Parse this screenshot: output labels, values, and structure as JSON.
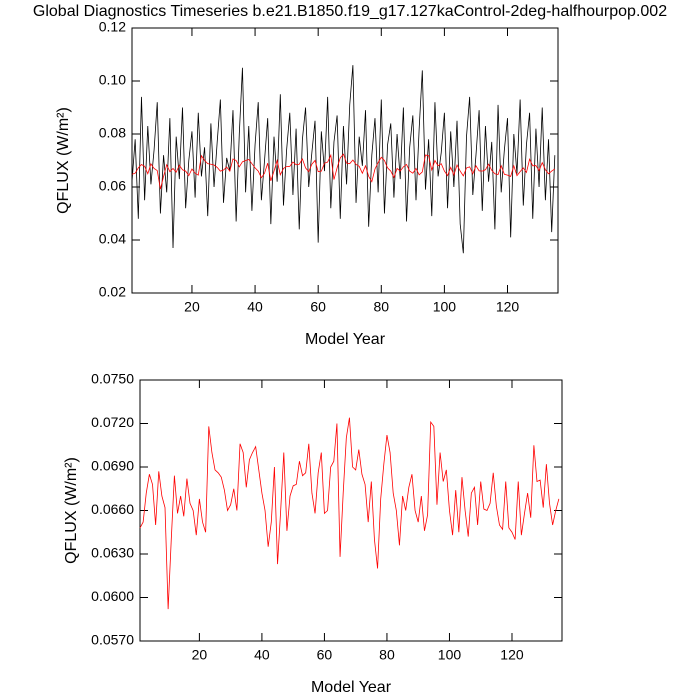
{
  "chart_data": [
    {
      "type": "line",
      "title": "Global Diagnostics Timeseries b.e21.B1850.f19_g17.127kaControl-2deg-halfhourpop.002",
      "xlabel": "Model Year",
      "ylabel": "QFLUX (W/m²)",
      "x": [
        1,
        2,
        3,
        4,
        5,
        6,
        7,
        8,
        9,
        10,
        11,
        12,
        13,
        14,
        15,
        16,
        17,
        18,
        19,
        20,
        21,
        22,
        23,
        24,
        25,
        26,
        27,
        28,
        29,
        30,
        31,
        32,
        33,
        34,
        35,
        36,
        37,
        38,
        39,
        40,
        41,
        42,
        43,
        44,
        45,
        46,
        47,
        48,
        49,
        50,
        51,
        52,
        53,
        54,
        55,
        56,
        57,
        58,
        59,
        60,
        61,
        62,
        63,
        64,
        65,
        66,
        67,
        68,
        69,
        70,
        71,
        72,
        73,
        74,
        75,
        76,
        77,
        78,
        79,
        80,
        81,
        82,
        83,
        84,
        85,
        86,
        87,
        88,
        89,
        90,
        91,
        92,
        93,
        94,
        95,
        96,
        97,
        98,
        99,
        100,
        101,
        102,
        103,
        104,
        105,
        106,
        107,
        108,
        109,
        110,
        111,
        112,
        113,
        114,
        115,
        116,
        117,
        118,
        119,
        120,
        121,
        122,
        123,
        124,
        125,
        126,
        127,
        128,
        129,
        130,
        131,
        132,
        133,
        134,
        135
      ],
      "xlim": [
        1,
        136
      ],
      "xticks": [
        20,
        40,
        60,
        80,
        100,
        120
      ],
      "ylim": [
        0.02,
        0.12
      ],
      "yticks": [
        0.02,
        0.04,
        0.06,
        0.08,
        {
          "value": 0.1,
          "label": "0.10"
        },
        0.12
      ],
      "series": [
        {
          "color": "#000000",
          "values": [
            0.062,
            0.078,
            0.048,
            0.094,
            0.055,
            0.083,
            0.061,
            0.074,
            0.092,
            0.05,
            0.072,
            0.058,
            0.086,
            0.037,
            0.079,
            0.063,
            0.09,
            0.052,
            0.07,
            0.081,
            0.056,
            0.088,
            0.064,
            0.075,
            0.049,
            0.084,
            0.06,
            0.077,
            0.093,
            0.054,
            0.071,
            0.066,
            0.089,
            0.047,
            0.08,
            0.105,
            0.058,
            0.083,
            0.051,
            0.076,
            0.092,
            0.055,
            0.07,
            0.086,
            0.046,
            0.079,
            0.062,
            0.095,
            0.053,
            0.074,
            0.088,
            0.057,
            0.082,
            0.044,
            0.078,
            0.09,
            0.06,
            0.073,
            0.085,
            0.039,
            0.081,
            0.066,
            0.094,
            0.052,
            0.077,
            0.087,
            0.048,
            0.083,
            0.061,
            0.091,
            0.106,
            0.054,
            0.079,
            0.068,
            0.089,
            0.045,
            0.072,
            0.086,
            0.058,
            0.093,
            0.05,
            0.076,
            0.084,
            0.056,
            0.08,
            0.063,
            0.09,
            0.047,
            0.075,
            0.087,
            0.055,
            0.082,
            0.104,
            0.059,
            0.078,
            0.049,
            0.092,
            0.064,
            0.073,
            0.088,
            0.052,
            0.081,
            0.06,
            0.085,
            0.046,
            0.035,
            0.079,
            0.094,
            0.057,
            0.072,
            0.089,
            0.051,
            0.083,
            0.062,
            0.077,
            0.044,
            0.091,
            0.058,
            0.074,
            0.086,
            0.041,
            0.08,
            0.065,
            0.093,
            0.053,
            0.076,
            0.088,
            0.048,
            0.082,
            0.06,
            0.09,
            0.055,
            0.078,
            0.043,
            0.072
          ]
        },
        {
          "color": "#ff0000",
          "values": [
            0.0648,
            0.0652,
            0.0672,
            0.0685,
            0.0678,
            0.065,
            0.0687,
            0.067,
            0.0662,
            0.0592,
            0.064,
            0.0684,
            0.0658,
            0.067,
            0.0656,
            0.0682,
            0.0665,
            0.066,
            0.0643,
            0.0668,
            0.0652,
            0.0645,
            0.0718,
            0.07,
            0.0688,
            0.0686,
            0.0683,
            0.0674,
            0.066,
            0.0664,
            0.0675,
            0.066,
            0.0706,
            0.07,
            0.0676,
            0.0695,
            0.07,
            0.0704,
            0.0688,
            0.0672,
            0.066,
            0.0635,
            0.0652,
            0.069,
            0.0623,
            0.066,
            0.07,
            0.0646,
            0.067,
            0.0677,
            0.0678,
            0.0694,
            0.0684,
            0.0686,
            0.0706,
            0.0672,
            0.0658,
            0.0686,
            0.07,
            0.0658,
            0.066,
            0.069,
            0.0694,
            0.072,
            0.0628,
            0.0672,
            0.071,
            0.0724,
            0.069,
            0.0688,
            0.0702,
            0.0685,
            0.0678,
            0.0652,
            0.068,
            0.064,
            0.062,
            0.0668,
            0.0692,
            0.0712,
            0.07,
            0.0672,
            0.066,
            0.0636,
            0.067,
            0.066,
            0.0676,
            0.0685,
            0.066,
            0.0652,
            0.067,
            0.0646,
            0.0657,
            0.0721,
            0.0718,
            0.0664,
            0.07,
            0.068,
            0.0688,
            0.066,
            0.0643,
            0.0674,
            0.0645,
            0.0683,
            0.066,
            0.0642,
            0.0672,
            0.0676,
            0.065,
            0.068,
            0.0661,
            0.066,
            0.0665,
            0.0686,
            0.0663,
            0.065,
            0.0647,
            0.068,
            0.0648,
            0.0645,
            0.064,
            0.068,
            0.0643,
            0.0658,
            0.0672,
            0.0655,
            0.0705,
            0.068,
            0.0681,
            0.0662,
            0.0692,
            0.0665,
            0.065,
            0.066,
            0.0668
          ]
        }
      ]
    },
    {
      "type": "line",
      "xlabel": "Model Year",
      "ylabel": "QFLUX (W/m²)",
      "x": [
        1,
        2,
        3,
        4,
        5,
        6,
        7,
        8,
        9,
        10,
        11,
        12,
        13,
        14,
        15,
        16,
        17,
        18,
        19,
        20,
        21,
        22,
        23,
        24,
        25,
        26,
        27,
        28,
        29,
        30,
        31,
        32,
        33,
        34,
        35,
        36,
        37,
        38,
        39,
        40,
        41,
        42,
        43,
        44,
        45,
        46,
        47,
        48,
        49,
        50,
        51,
        52,
        53,
        54,
        55,
        56,
        57,
        58,
        59,
        60,
        61,
        62,
        63,
        64,
        65,
        66,
        67,
        68,
        69,
        70,
        71,
        72,
        73,
        74,
        75,
        76,
        77,
        78,
        79,
        80,
        81,
        82,
        83,
        84,
        85,
        86,
        87,
        88,
        89,
        90,
        91,
        92,
        93,
        94,
        95,
        96,
        97,
        98,
        99,
        100,
        101,
        102,
        103,
        104,
        105,
        106,
        107,
        108,
        109,
        110,
        111,
        112,
        113,
        114,
        115,
        116,
        117,
        118,
        119,
        120,
        121,
        122,
        123,
        124,
        125,
        126,
        127,
        128,
        129,
        130,
        131,
        132,
        133,
        134,
        135
      ],
      "xlim": [
        1,
        136
      ],
      "xticks": [
        20,
        40,
        60,
        80,
        100,
        120
      ],
      "ylim": [
        0.057,
        0.075
      ],
      "yticks": [
        {
          "value": 0.057,
          "label": "0.0570"
        },
        {
          "value": 0.06,
          "label": "0.0600"
        },
        {
          "value": 0.063,
          "label": "0.0630"
        },
        {
          "value": 0.066,
          "label": "0.0660"
        },
        {
          "value": 0.069,
          "label": "0.0690"
        },
        {
          "value": 0.072,
          "label": "0.0720"
        },
        {
          "value": 0.075,
          "label": "0.0750"
        }
      ],
      "series": [
        {
          "color": "#ff0000",
          "values": [
            0.0648,
            0.0652,
            0.0672,
            0.0685,
            0.0678,
            0.065,
            0.0687,
            0.067,
            0.0662,
            0.0592,
            0.064,
            0.0684,
            0.0658,
            0.067,
            0.0656,
            0.0682,
            0.0665,
            0.066,
            0.0643,
            0.0668,
            0.0652,
            0.0645,
            0.0718,
            0.07,
            0.0688,
            0.0686,
            0.0683,
            0.0674,
            0.066,
            0.0664,
            0.0675,
            0.066,
            0.0706,
            0.07,
            0.0676,
            0.0695,
            0.07,
            0.0704,
            0.0688,
            0.0672,
            0.066,
            0.0635,
            0.0652,
            0.069,
            0.0623,
            0.066,
            0.07,
            0.0646,
            0.067,
            0.0677,
            0.0678,
            0.0694,
            0.0684,
            0.0686,
            0.0706,
            0.0672,
            0.0658,
            0.0686,
            0.07,
            0.0658,
            0.066,
            0.069,
            0.0694,
            0.072,
            0.0628,
            0.0672,
            0.071,
            0.0724,
            0.069,
            0.0688,
            0.0702,
            0.0685,
            0.0678,
            0.0652,
            0.068,
            0.064,
            0.062,
            0.0668,
            0.0692,
            0.0712,
            0.07,
            0.0672,
            0.066,
            0.0636,
            0.067,
            0.066,
            0.0676,
            0.0685,
            0.066,
            0.0652,
            0.067,
            0.0646,
            0.0657,
            0.0721,
            0.0718,
            0.0664,
            0.07,
            0.068,
            0.0688,
            0.066,
            0.0643,
            0.0674,
            0.0645,
            0.0683,
            0.066,
            0.0642,
            0.0672,
            0.0676,
            0.065,
            0.068,
            0.0661,
            0.066,
            0.0665,
            0.0686,
            0.0663,
            0.065,
            0.0647,
            0.068,
            0.0648,
            0.0645,
            0.064,
            0.068,
            0.0643,
            0.0658,
            0.0672,
            0.0655,
            0.0705,
            0.068,
            0.0681,
            0.0662,
            0.0692,
            0.0665,
            0.065,
            0.066,
            0.0668
          ]
        }
      ]
    }
  ]
}
